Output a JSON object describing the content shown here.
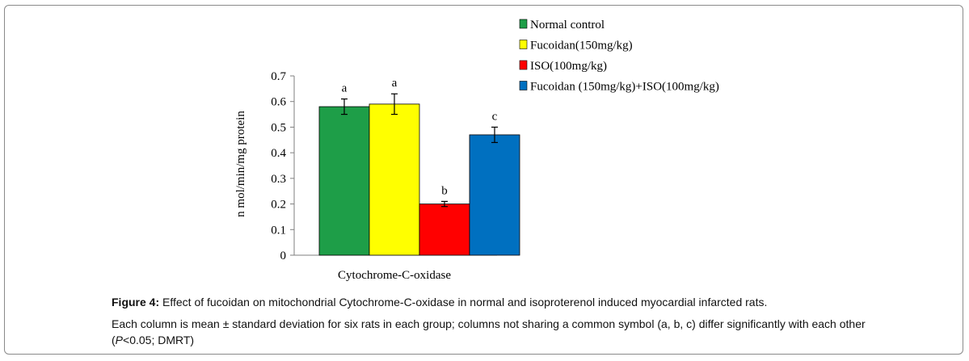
{
  "chart_data": {
    "type": "bar",
    "categories": [
      "Cytochrome-C-oxidase"
    ],
    "ylabel": "n mol/min/mg protein",
    "ylim": [
      0,
      0.7
    ],
    "yticks": [
      "0",
      "0.1",
      "0.2",
      "0.3",
      "0.4",
      "0.5",
      "0.6",
      "0.7"
    ],
    "ytick_values": [
      0,
      0.1,
      0.2,
      0.3,
      0.4,
      0.5,
      0.6,
      0.7
    ],
    "legend_position": "top-right",
    "grid": false,
    "series": [
      {
        "name": "Normal control",
        "values": [
          0.58
        ],
        "error": [
          0.03
        ],
        "symbol": "a",
        "color": "#1e9e48"
      },
      {
        "name": "Fucoidan(150mg/kg)",
        "values": [
          0.59
        ],
        "error": [
          0.04
        ],
        "symbol": "a",
        "color": "#ffff00"
      },
      {
        "name": "ISO(100mg/kg)",
        "values": [
          0.2
        ],
        "error": [
          0.01
        ],
        "symbol": "b",
        "color": "#ff0000"
      },
      {
        "name": "Fucoidan (150mg/kg)+ISO(100mg/kg)",
        "values": [
          0.47
        ],
        "error": [
          0.03
        ],
        "symbol": "c",
        "color": "#0070c0"
      }
    ]
  },
  "caption": {
    "label": "Figure 4:",
    "title": " Effect of fucoidan on mitochondrial Cytochrome-C-oxidase in normal and isoproterenol induced myocardial infarcted rats.",
    "note_before": "Each column is mean ± standard deviation for six rats in each group; columns not sharing a common symbol (a, b, c) differ significantly with each other (",
    "note_italic": "P",
    "note_after": "<0.05; DMRT)"
  }
}
